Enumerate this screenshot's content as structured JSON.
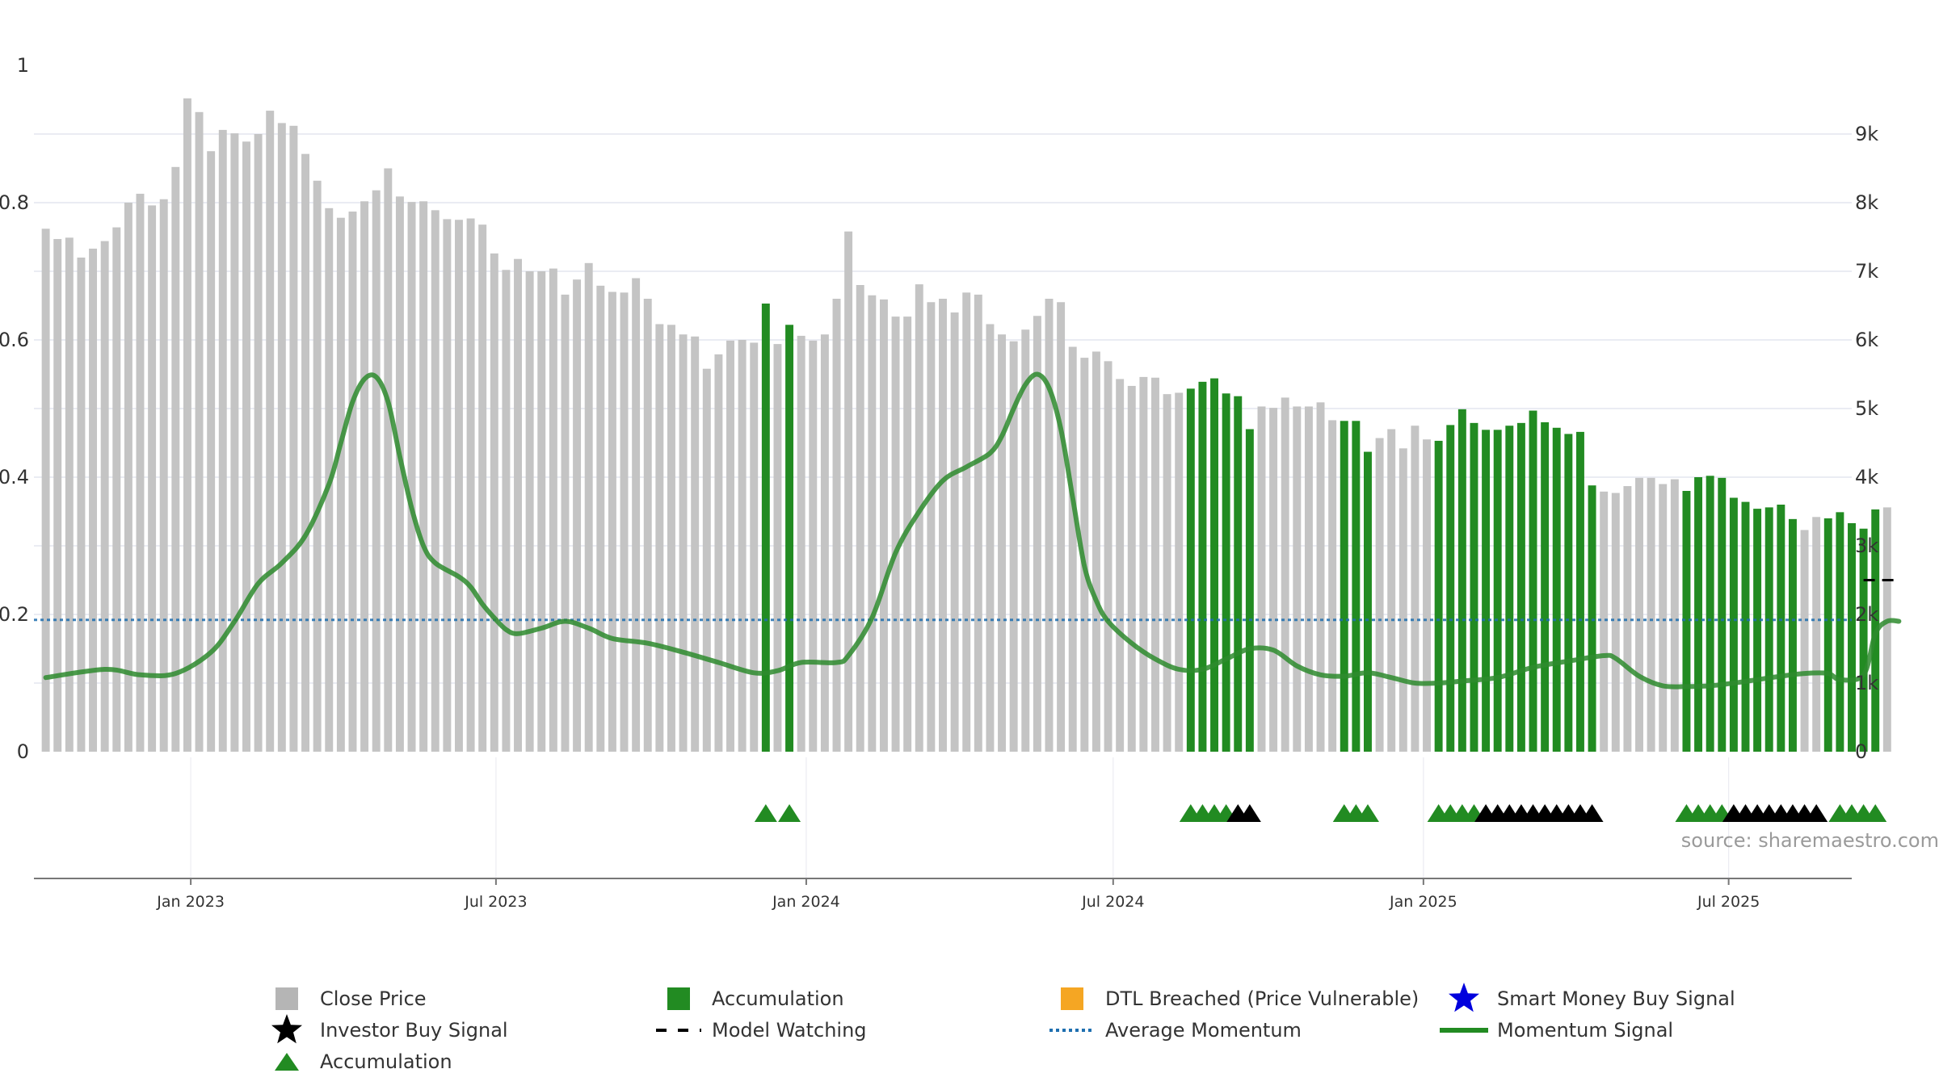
{
  "chart_data": {
    "type": "bar",
    "source_text": "source: sharemaestro.com",
    "left_axis": {
      "ylim": [
        0,
        1
      ],
      "ticks": [
        {
          "value": 0,
          "label": "0"
        },
        {
          "value": 0.2,
          "label": "0.2"
        },
        {
          "value": 0.4,
          "label": "0.4"
        },
        {
          "value": 0.6,
          "label": "0.6"
        },
        {
          "value": 0.8,
          "label": "0.8"
        },
        {
          "value": 1,
          "label": "1"
        }
      ]
    },
    "right_axis": {
      "ylim": [
        0,
        10000
      ],
      "ticks": [
        {
          "value": 0,
          "label": "0"
        },
        {
          "value": 1000,
          "label": "1k"
        },
        {
          "value": 2000,
          "label": "2k"
        },
        {
          "value": 3000,
          "label": "3k"
        },
        {
          "value": 4000,
          "label": "4k"
        },
        {
          "value": 5000,
          "label": "5k"
        },
        {
          "value": 6000,
          "label": "6k"
        },
        {
          "value": 7000,
          "label": "7k"
        },
        {
          "value": 8000,
          "label": "8k"
        },
        {
          "value": 9000,
          "label": "9k"
        }
      ]
    },
    "x_axis": {
      "xlim": [
        "2022-09-30",
        "2025-09-12"
      ],
      "ticks": [
        {
          "date": "2023-01-01",
          "label": "Jan 2023"
        },
        {
          "date": "2023-07-01",
          "label": "Jul 2023"
        },
        {
          "date": "2024-01-01",
          "label": "Jan 2024"
        },
        {
          "date": "2024-07-01",
          "label": "Jul 2024"
        },
        {
          "date": "2025-01-01",
          "label": "Jan 2025"
        },
        {
          "date": "2025-07-01",
          "label": "Jul 2025"
        }
      ]
    },
    "first_week": "2022-10-07",
    "week_step_days": 7,
    "colors": {
      "close_price": "#c4c4c4",
      "accumulation": "#228b22",
      "dtl_breached": "#f5a623",
      "smart_money": "#0000dd",
      "investor_buy": "#000000",
      "model_watching": "#000000",
      "average_momentum": "#1f6fb0",
      "momentum": "#2e8b2e",
      "grid": "#e4e6ef"
    },
    "close_price": [
      7620,
      7470,
      7490,
      7200,
      7330,
      7440,
      7640,
      8000,
      8130,
      7960,
      8050,
      8520,
      9520,
      9320,
      8750,
      9060,
      9010,
      8890,
      9000,
      9340,
      9160,
      9120,
      8710,
      8320,
      7920,
      7780,
      7870,
      8020,
      8180,
      8500,
      8090,
      8010,
      8020,
      7890,
      7760,
      7750,
      7770,
      7680,
      7260,
      7020,
      7180,
      7000,
      7000,
      7040,
      6660,
      6880,
      7120,
      6790,
      6700,
      6690,
      6900,
      6600,
      6230,
      6220,
      6080,
      6050,
      5580,
      5790,
      5990,
      6000,
      5960,
      6530,
      5940,
      6220,
      6060,
      5990,
      6080,
      6600,
      7580,
      6800,
      6650,
      6590,
      6340,
      6340,
      6810,
      6550,
      6600,
      6400,
      6690,
      6660,
      6230,
      6080,
      5980,
      6150,
      6350,
      6600,
      6550,
      5900,
      5740,
      5830,
      5690,
      5430,
      5330,
      5460,
      5450,
      5210,
      5230,
      5290,
      5390,
      5440,
      5220,
      5180,
      4700,
      5030,
      5010,
      5160,
      5030,
      5030,
      5090,
      4830,
      4820,
      4820,
      4370,
      4570,
      4700,
      4420,
      4750,
      4550,
      4530,
      4760,
      4990,
      4790,
      4690,
      4690,
      4750,
      4790,
      4970,
      4800,
      4720,
      4630,
      4660,
      3880,
      3790,
      3770,
      3870,
      3990,
      3990,
      3900,
      3970,
      3800,
      4000,
      4020,
      3990,
      3700,
      3640,
      3540,
      3560,
      3600,
      3390,
      3230,
      3420,
      3400,
      3490,
      3330,
      3250,
      3530,
      3560
    ],
    "accumulation_ranges": [
      [
        61,
        61
      ],
      [
        63,
        63
      ],
      [
        97,
        102
      ],
      [
        110,
        112
      ],
      [
        118,
        131
      ],
      [
        139,
        148
      ],
      [
        151,
        155
      ]
    ],
    "momentum_signal": [
      [
        0,
        0.108
      ],
      [
        5,
        0.12
      ],
      [
        8,
        0.112
      ],
      [
        11,
        0.114
      ],
      [
        14,
        0.145
      ],
      [
        16,
        0.19
      ],
      [
        18,
        0.245
      ],
      [
        20,
        0.275
      ],
      [
        22,
        0.315
      ],
      [
        24,
        0.39
      ],
      [
        25,
        0.45
      ],
      [
        26,
        0.51
      ],
      [
        27,
        0.543
      ],
      [
        28,
        0.546
      ],
      [
        29,
        0.51
      ],
      [
        30,
        0.43
      ],
      [
        31,
        0.355
      ],
      [
        32,
        0.3
      ],
      [
        33,
        0.275
      ],
      [
        35,
        0.255
      ],
      [
        36,
        0.24
      ],
      [
        37,
        0.215
      ],
      [
        38,
        0.195
      ],
      [
        39,
        0.178
      ],
      [
        40,
        0.172
      ],
      [
        42,
        0.18
      ],
      [
        44,
        0.19
      ],
      [
        46,
        0.18
      ],
      [
        48,
        0.165
      ],
      [
        51,
        0.158
      ],
      [
        54,
        0.145
      ],
      [
        57,
        0.13
      ],
      [
        60,
        0.115
      ],
      [
        62,
        0.118
      ],
      [
        64,
        0.13
      ],
      [
        67,
        0.13
      ],
      [
        68,
        0.14
      ],
      [
        70,
        0.195
      ],
      [
        72,
        0.29
      ],
      [
        74,
        0.35
      ],
      [
        76,
        0.395
      ],
      [
        78,
        0.415
      ],
      [
        80,
        0.435
      ],
      [
        81,
        0.46
      ],
      [
        82,
        0.5
      ],
      [
        83,
        0.535
      ],
      [
        84,
        0.55
      ],
      [
        85,
        0.53
      ],
      [
        86,
        0.47
      ],
      [
        87,
        0.37
      ],
      [
        88,
        0.27
      ],
      [
        89,
        0.22
      ],
      [
        90,
        0.19
      ],
      [
        92,
        0.158
      ],
      [
        94,
        0.135
      ],
      [
        96,
        0.12
      ],
      [
        98,
        0.12
      ],
      [
        100,
        0.135
      ],
      [
        102,
        0.15
      ],
      [
        104,
        0.148
      ],
      [
        106,
        0.125
      ],
      [
        108,
        0.112
      ],
      [
        110,
        0.11
      ],
      [
        112,
        0.115
      ],
      [
        114,
        0.108
      ],
      [
        116,
        0.1
      ],
      [
        118,
        0.1
      ],
      [
        120,
        0.103
      ],
      [
        123,
        0.108
      ],
      [
        126,
        0.123
      ],
      [
        129,
        0.132
      ],
      [
        132,
        0.14
      ],
      [
        133,
        0.136
      ],
      [
        135,
        0.11
      ],
      [
        137,
        0.096
      ],
      [
        139,
        0.095
      ],
      [
        141,
        0.096
      ],
      [
        143,
        0.1
      ],
      [
        145,
        0.105
      ],
      [
        147,
        0.11
      ],
      [
        149,
        0.114
      ],
      [
        151,
        0.114
      ],
      [
        152,
        0.105
      ],
      [
        154,
        0.112
      ],
      [
        155,
        0.172
      ],
      [
        156,
        0.19
      ],
      [
        157,
        0.19
      ]
    ],
    "average_momentum": 0.192,
    "model_watching": [
      {
        "from": 154,
        "to": 157,
        "value": 2500
      }
    ],
    "accumulation_triangles": [
      61,
      63,
      97,
      98,
      99,
      100,
      110,
      111,
      112,
      118,
      119,
      120,
      121,
      139,
      140,
      141,
      142,
      152,
      153,
      154,
      155
    ],
    "investor_buy_triangles": [
      101,
      102,
      122,
      123,
      124,
      125,
      126,
      127,
      128,
      129,
      130,
      131,
      143,
      144,
      145,
      146,
      147,
      148,
      149,
      150
    ],
    "legend": [
      {
        "label": "Close Price",
        "marker": "square-icon",
        "color": "#b5b5b5"
      },
      {
        "label": "Accumulation",
        "marker": "square-icon",
        "color": "#228b22"
      },
      {
        "label": "DTL Breached (Price Vulnerable)",
        "marker": "square-icon",
        "color": "#f5a623"
      },
      {
        "label": "Smart Money Buy Signal",
        "marker": "star-icon",
        "color": "#0000dd"
      },
      {
        "label": "Investor Buy Signal",
        "marker": "star-icon",
        "color": "#000000"
      },
      {
        "label": "Model Watching",
        "marker": "dash-line-icon",
        "color": "#000000"
      },
      {
        "label": "Average Momentum",
        "marker": "dotted-line-icon",
        "color": "#1f6fb0"
      },
      {
        "label": "Momentum Signal",
        "marker": "solid-line-icon",
        "color": "#228b22"
      },
      {
        "label": "Accumulation",
        "marker": "triangle-icon",
        "color": "#228b22"
      }
    ]
  }
}
